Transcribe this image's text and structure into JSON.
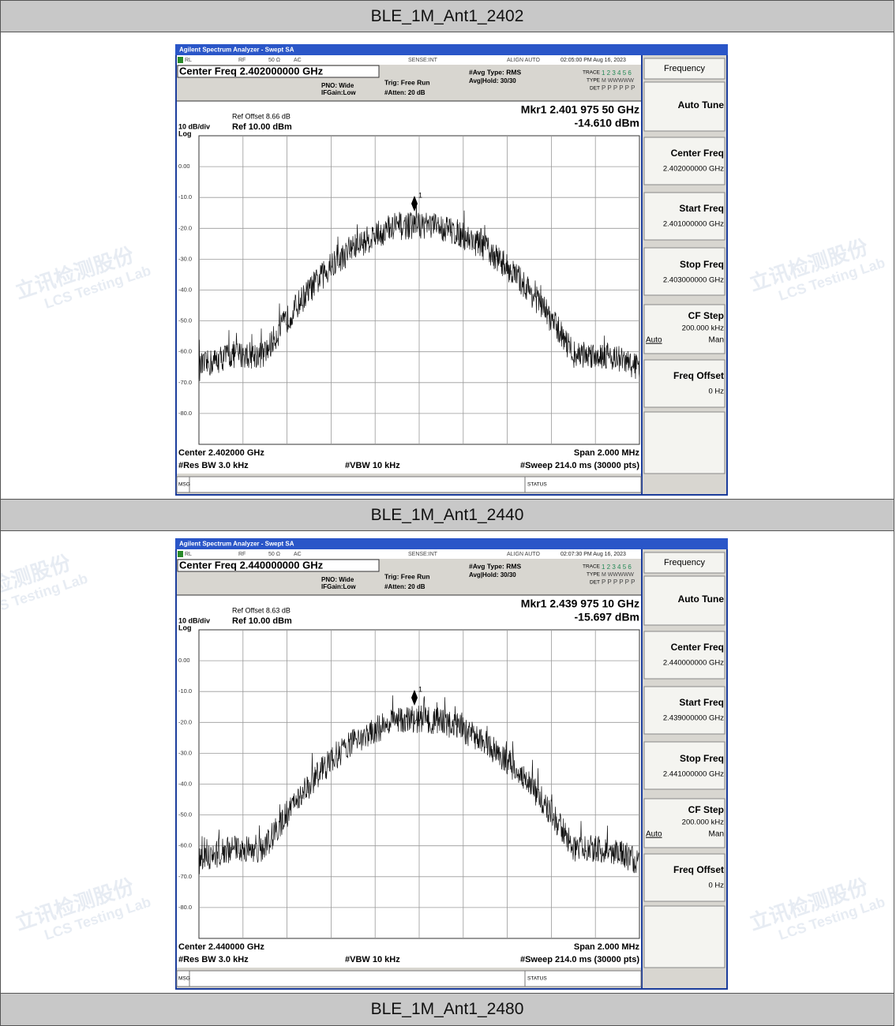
{
  "sections": [
    {
      "title": "BLE_1M_Ant1_2402",
      "analyzer": {
        "time": "02:05:00 PM Aug 16, 2023",
        "center_freq_title": "Center Freq 2.402000000 GHz",
        "ref_offset": "Ref Offset 8.66 dB",
        "marker_freq": "Mkr1 2.401 975 50 GHz",
        "marker_amp": "-14.610 dBm",
        "center": "Center 2.402000 GHz",
        "center_value": "2.402000000 GHz",
        "start_value": "2.401000000 GHz",
        "stop_value": "2.403000000 GHz"
      }
    },
    {
      "title": "BLE_1M_Ant1_2440",
      "analyzer": {
        "time": "02:07:30 PM Aug 16, 2023",
        "center_freq_title": "Center Freq 2.440000000 GHz",
        "ref_offset": "Ref Offset 8.63 dB",
        "marker_freq": "Mkr1 2.439 975 10 GHz",
        "marker_amp": "-15.697 dBm",
        "center": "Center 2.440000 GHz",
        "center_value": "2.440000000 GHz",
        "start_value": "2.439000000 GHz",
        "stop_value": "2.441000000 GHz"
      }
    },
    {
      "title": "BLE_1M_Ant1_2480"
    }
  ],
  "analyzer_common": {
    "app_title": "Agilent Spectrum Analyzer - Swept SA",
    "rl": "RL",
    "rf": "RF",
    "impedance": "50 Ω",
    "coupling": "AC",
    "sense": "SENSE:INT",
    "align": "ALIGN AUTO",
    "pno": "PNO: Wide",
    "ifgain": "IFGain:Low",
    "trig": "Trig: Free Run",
    "atten": "#Atten: 20 dB",
    "avg_type": "#Avg Type: RMS",
    "avg_hold": "Avg|Hold: 30/30",
    "trace_label": "TRACE",
    "trace_nums": "1 2 3 4 5 6",
    "type_label": "TYPE",
    "type_val": "M WWWWW",
    "det_label": "DET",
    "det_val": "P P P P P P",
    "scale": "10 dB/div",
    "ref_level": "Ref 10.00 dBm",
    "log": "Log",
    "y_labels": [
      "0.00",
      "-10.0",
      "-20.0",
      "-30.0",
      "-40.0",
      "-50.0",
      "-60.0",
      "-70.0",
      "-80.0"
    ],
    "res_bw": "#Res BW 3.0 kHz",
    "vbw": "#VBW 10 kHz",
    "span": "Span 2.000 MHz",
    "sweep": "#Sweep  214.0 ms (30000 pts)",
    "msg": "MSG",
    "status": "STATUS",
    "marker_num": "1",
    "softkeys": {
      "menu": "Frequency",
      "auto_tune": "Auto Tune",
      "center_label": "Center Freq",
      "start_label": "Start Freq",
      "stop_label": "Stop Freq",
      "cf_step_label": "CF Step",
      "cf_step_value": "200.000 kHz",
      "auto": "Auto",
      "man": "Man",
      "freq_offset_label": "Freq Offset",
      "freq_offset_value": "0 Hz"
    }
  },
  "watermark": {
    "cn": "立讯检测股份",
    "en": "LCS Testing Lab"
  }
}
